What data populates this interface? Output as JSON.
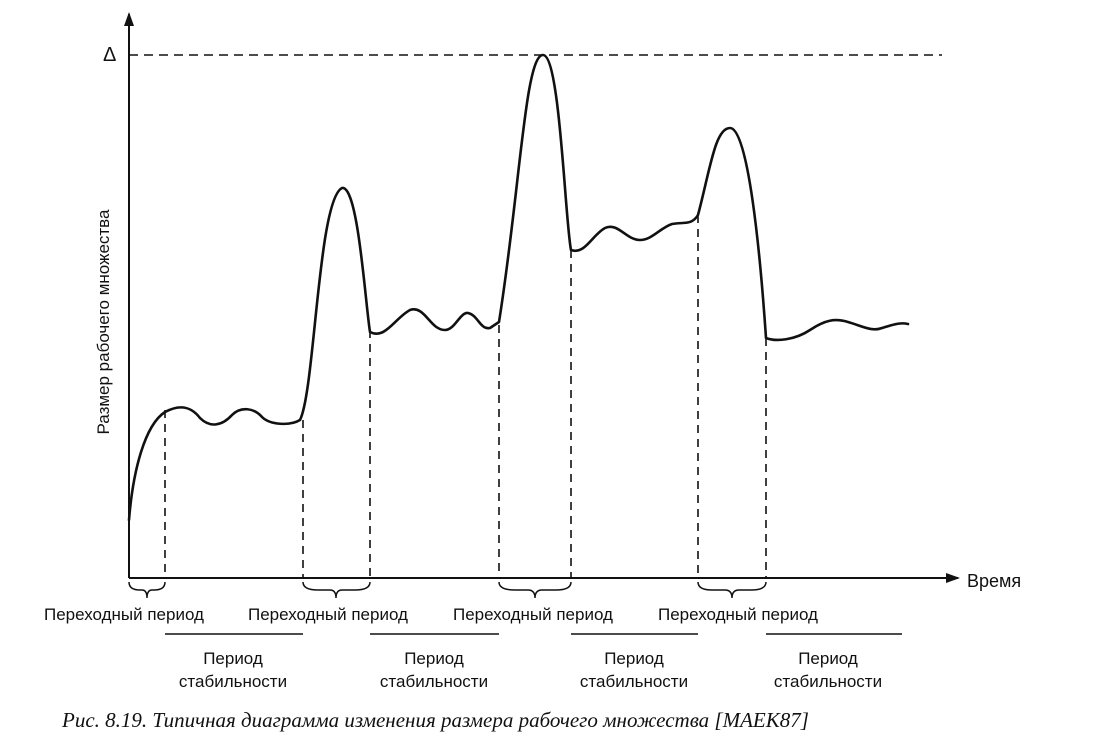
{
  "diagram": {
    "y_axis_label": "Размер рабочего множества",
    "x_axis_label": "Время",
    "delta_label": "Δ",
    "phases": {
      "transition_1": "Переходный период",
      "transition_2": "Переходный период",
      "transition_3": "Переходный период",
      "transition_4": "Переходный период",
      "stable_1_line1": "Период",
      "stable_1_line2": "стабильности",
      "stable_2_line1": "Период",
      "stable_2_line2": "стабильности",
      "stable_3_line1": "Период",
      "stable_3_line2": "стабильности",
      "stable_4_line1": "Период",
      "stable_4_line2": "стабильности"
    },
    "caption": "Рис. 8.19. Типичная диаграмма изменения размера рабочего множества [MAEK87]"
  }
}
